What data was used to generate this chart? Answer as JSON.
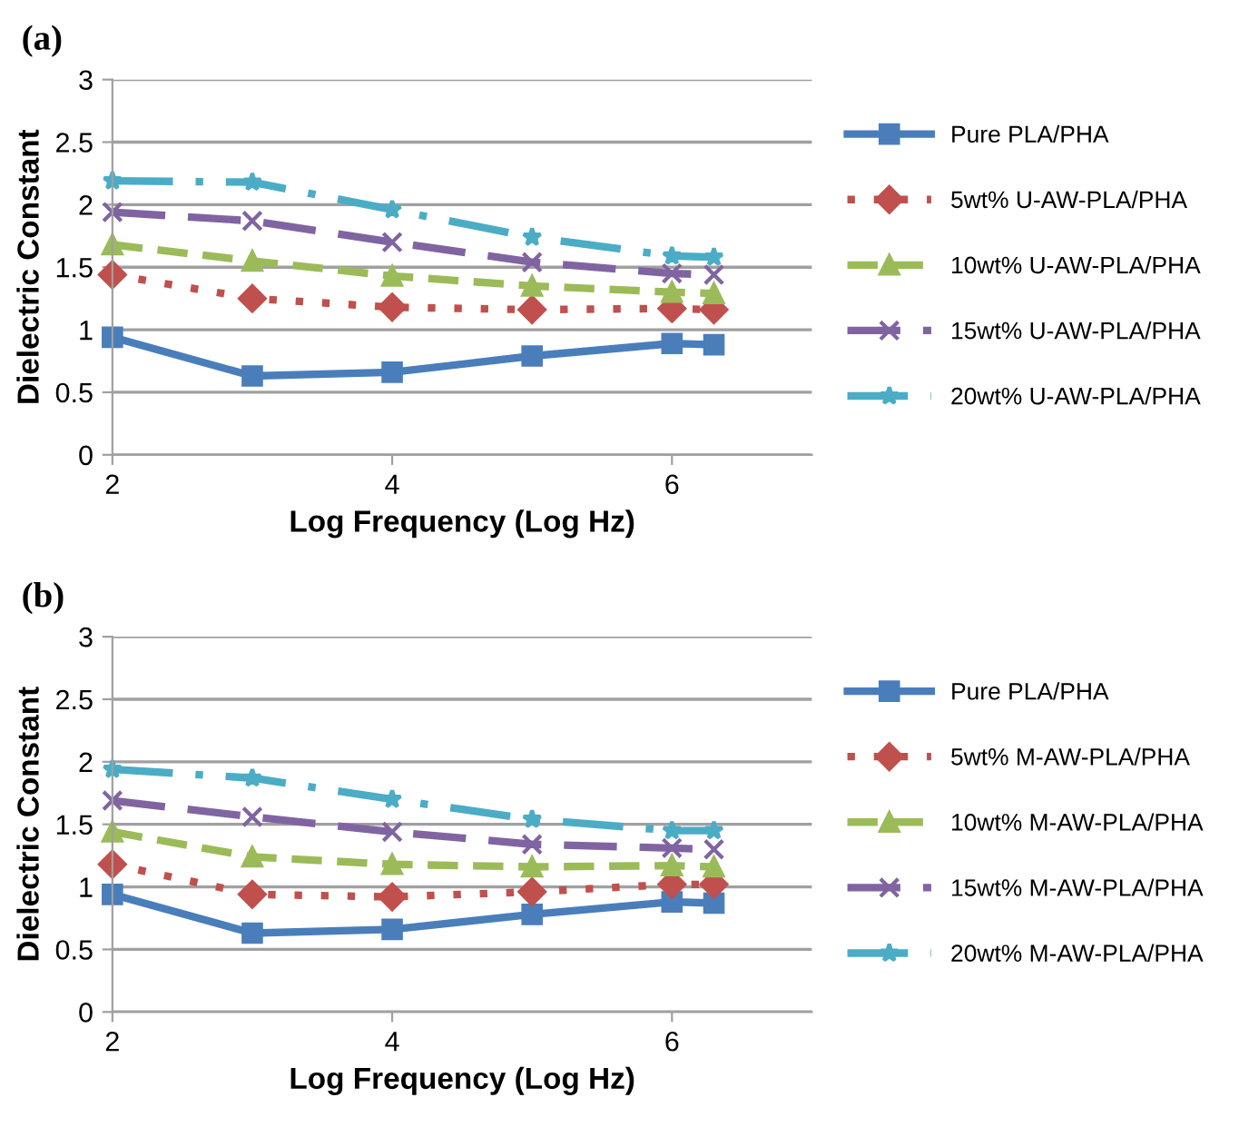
{
  "chart_data": [
    {
      "type": "line",
      "title": "(a)",
      "xlabel": "Log Frequency (Log Hz)",
      "ylabel": "Dielectric Constant",
      "x": [
        2,
        3,
        4,
        5,
        6,
        6.3
      ],
      "xlim": [
        2,
        7
      ],
      "xticks": [
        2,
        4,
        6
      ],
      "ylim": [
        0,
        3
      ],
      "yticks": [
        0,
        0.5,
        1,
        1.5,
        2,
        2.5,
        3
      ],
      "grid": "y",
      "legend": "right",
      "series": [
        {
          "name": "Pure PLA/PHA",
          "color": "#4a7ebb",
          "marker": "square",
          "line_style": "solid",
          "values": [
            0.94,
            0.63,
            0.66,
            0.79,
            0.89,
            0.88
          ]
        },
        {
          "name": "5wt% U-AW-PLA/PHA",
          "color": "#c0504d",
          "marker": "diamond",
          "line_style": "dotted",
          "values": [
            1.44,
            1.25,
            1.18,
            1.16,
            1.17,
            1.16
          ]
        },
        {
          "name": "10wt% U-AW-PLA/PHA",
          "color": "#9bbb59",
          "marker": "triangle",
          "line_style": "dashed",
          "values": [
            1.68,
            1.55,
            1.43,
            1.35,
            1.3,
            1.29
          ]
        },
        {
          "name": "15wt% U-AW-PLA/PHA",
          "color": "#8064a2",
          "marker": "cross",
          "line_style": "longdash",
          "values": [
            1.94,
            1.87,
            1.7,
            1.54,
            1.45,
            1.44
          ]
        },
        {
          "name": "20wt% U-AW-PLA/PHA",
          "color": "#4bacc6",
          "marker": "star",
          "line_style": "dashdot",
          "values": [
            2.19,
            2.18,
            1.96,
            1.74,
            1.59,
            1.58
          ]
        }
      ]
    },
    {
      "type": "line",
      "title": "(b)",
      "xlabel": "Log Frequency (Log Hz)",
      "ylabel": "Dielectric Constant",
      "x": [
        2,
        3,
        4,
        5,
        6,
        6.3
      ],
      "xlim": [
        2,
        7
      ],
      "xticks": [
        2,
        4,
        6
      ],
      "ylim": [
        0,
        3
      ],
      "yticks": [
        0,
        0.5,
        1,
        1.5,
        2,
        2.5,
        3
      ],
      "grid": "y",
      "legend": "right",
      "series": [
        {
          "name": "Pure PLA/PHA",
          "color": "#4a7ebb",
          "marker": "square",
          "line_style": "solid",
          "values": [
            0.94,
            0.63,
            0.66,
            0.78,
            0.88,
            0.87
          ]
        },
        {
          "name": "5wt% M-AW-PLA/PHA",
          "color": "#c0504d",
          "marker": "diamond",
          "line_style": "dotted",
          "values": [
            1.18,
            0.94,
            0.92,
            0.96,
            1.02,
            1.02
          ]
        },
        {
          "name": "10wt% M-AW-PLA/PHA",
          "color": "#9bbb59",
          "marker": "triangle",
          "line_style": "dashed",
          "values": [
            1.44,
            1.24,
            1.18,
            1.16,
            1.17,
            1.16
          ]
        },
        {
          "name": "15wt% M-AW-PLA/PHA",
          "color": "#8064a2",
          "marker": "cross",
          "line_style": "longdash",
          "values": [
            1.69,
            1.56,
            1.44,
            1.34,
            1.31,
            1.3
          ]
        },
        {
          "name": "20wt% M-AW-PLA/PHA",
          "color": "#4bacc6",
          "marker": "star",
          "line_style": "dashdot",
          "values": [
            1.94,
            1.87,
            1.7,
            1.54,
            1.45,
            1.45
          ]
        }
      ]
    }
  ]
}
